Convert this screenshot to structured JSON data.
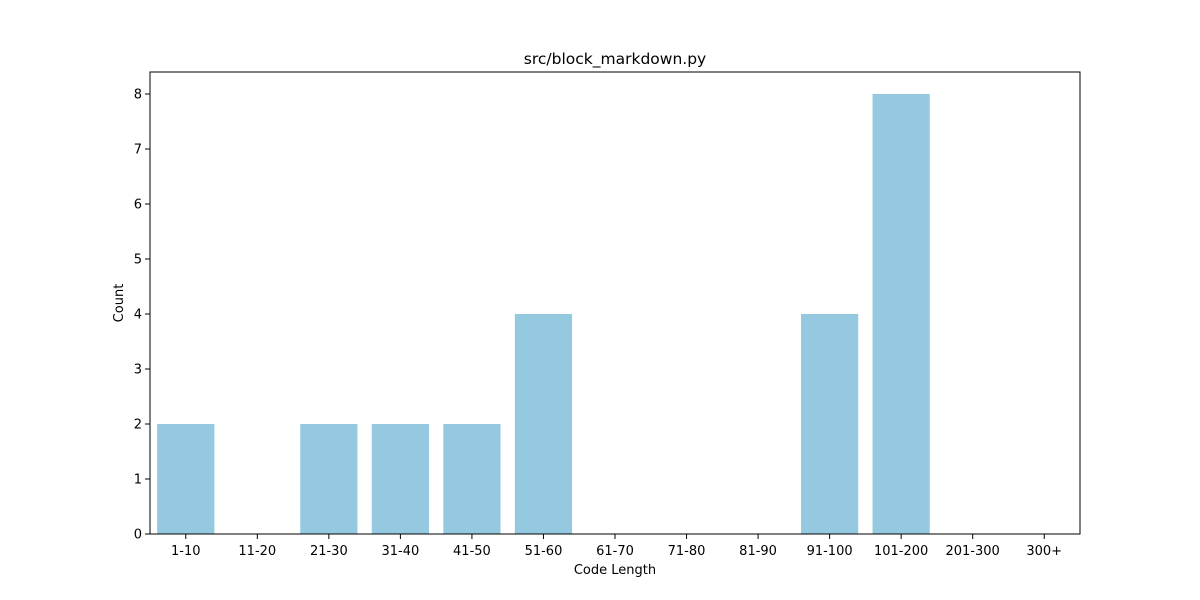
{
  "chart_data": {
    "type": "bar",
    "title": "src/block_markdown.py",
    "xlabel": "Code Length",
    "ylabel": "Count",
    "categories": [
      "1-10",
      "11-20",
      "21-30",
      "31-40",
      "41-50",
      "51-60",
      "61-70",
      "71-80",
      "81-90",
      "91-100",
      "101-200",
      "201-300",
      "300+"
    ],
    "values": [
      2,
      0,
      2,
      2,
      2,
      4,
      0,
      0,
      0,
      4,
      8,
      0,
      0
    ],
    "ylim": [
      0,
      8.4
    ],
    "yticks": [
      0,
      1,
      2,
      3,
      4,
      5,
      6,
      7,
      8
    ],
    "grid": false,
    "legend": "none",
    "bar_color": "#95c9df"
  }
}
